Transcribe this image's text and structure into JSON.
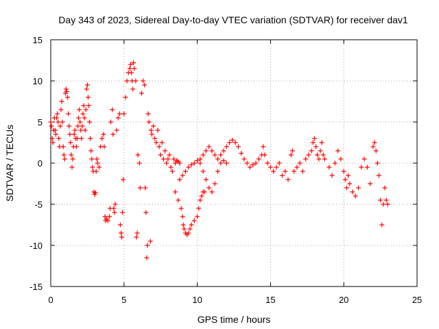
{
  "chart_data": {
    "type": "scatter",
    "title": "Day 343 of 2023, Sidereal Day-to-day VTEC variation (SDTVAR) for receiver dav1",
    "xlabel": "GPS time / hours",
    "ylabel": "SDTVAR / TECUs",
    "xlim": [
      0,
      25
    ],
    "ylim": [
      -15,
      15
    ],
    "x_ticks": [
      0,
      5,
      10,
      15,
      20,
      25
    ],
    "y_ticks": [
      -15,
      -10,
      -5,
      0,
      5,
      10,
      15
    ],
    "x_tick_labels": [
      "0",
      "5",
      "10",
      "15",
      "20",
      "25"
    ],
    "y_tick_labels": [
      "-15",
      "-10",
      "-5",
      "0",
      "5",
      "10",
      "15"
    ],
    "grid": true,
    "marker": "+",
    "series": [
      {
        "name": "dav1",
        "color": "#ff0000",
        "points": [
          [
            0.0,
            5.0
          ],
          [
            0.05,
            4.5
          ],
          [
            0.1,
            3.0
          ],
          [
            0.15,
            2.5
          ],
          [
            0.2,
            4.0
          ],
          [
            0.25,
            5.5
          ],
          [
            0.3,
            4.0
          ],
          [
            0.35,
            3.5
          ],
          [
            0.4,
            5.5
          ],
          [
            0.45,
            6.0
          ],
          [
            0.5,
            5.0
          ],
          [
            0.55,
            3.0
          ],
          [
            0.6,
            2.0
          ],
          [
            0.65,
            4.5
          ],
          [
            0.7,
            6.5
          ],
          [
            0.75,
            7.5
          ],
          [
            0.8,
            5.0
          ],
          [
            0.85,
            2.0
          ],
          [
            0.9,
            1.0
          ],
          [
            0.95,
            0.5
          ],
          [
            1.0,
            8.5
          ],
          [
            1.05,
            9.0
          ],
          [
            1.1,
            8.7
          ],
          [
            1.15,
            8.0
          ],
          [
            1.2,
            6.0
          ],
          [
            1.25,
            4.5
          ],
          [
            1.3,
            3.5
          ],
          [
            1.35,
            2.5
          ],
          [
            1.4,
            1.0
          ],
          [
            1.45,
            -0.5
          ],
          [
            1.5,
            0.5
          ],
          [
            1.55,
            2.0
          ],
          [
            1.6,
            3.5
          ],
          [
            1.65,
            4.0
          ],
          [
            1.7,
            3.0
          ],
          [
            1.75,
            2.0
          ],
          [
            1.8,
            3.0
          ],
          [
            1.85,
            4.5
          ],
          [
            1.9,
            5.5
          ],
          [
            1.95,
            6.5
          ],
          [
            2.0,
            5.0
          ],
          [
            2.05,
            4.0
          ],
          [
            2.1,
            3.0
          ],
          [
            2.15,
            4.5
          ],
          [
            2.2,
            6.0
          ],
          [
            2.25,
            7.0
          ],
          [
            2.3,
            5.5
          ],
          [
            2.35,
            4.0
          ],
          [
            2.4,
            6.5
          ],
          [
            2.45,
            9.0
          ],
          [
            2.5,
            9.5
          ],
          [
            2.55,
            8.0
          ],
          [
            2.6,
            7.0
          ],
          [
            2.65,
            5.0
          ],
          [
            2.7,
            3.0
          ],
          [
            2.75,
            1.5
          ],
          [
            2.8,
            0.5
          ],
          [
            2.85,
            -0.5
          ],
          [
            2.9,
            -1.0
          ],
          [
            2.95,
            -3.5
          ],
          [
            3.0,
            -3.8
          ],
          [
            3.05,
            -3.6
          ],
          [
            3.1,
            -1.0
          ],
          [
            3.15,
            0.5
          ],
          [
            3.2,
            0.0
          ],
          [
            3.3,
            -0.5
          ],
          [
            3.4,
            2.0
          ],
          [
            3.5,
            3.0
          ],
          [
            3.6,
            3.5
          ],
          [
            3.65,
            2.0
          ],
          [
            3.7,
            -6.5
          ],
          [
            3.75,
            -7.0
          ],
          [
            3.8,
            -6.8
          ],
          [
            3.9,
            -7.0
          ],
          [
            4.0,
            -6.5
          ],
          [
            4.05,
            -5.5
          ],
          [
            4.1,
            5.0
          ],
          [
            4.2,
            6.5
          ],
          [
            4.25,
            3.5
          ],
          [
            4.3,
            -5.5
          ],
          [
            4.35,
            -6.0
          ],
          [
            4.4,
            -5.0
          ],
          [
            4.5,
            4.0
          ],
          [
            4.6,
            5.5
          ],
          [
            4.7,
            6.0
          ],
          [
            4.75,
            -7.5
          ],
          [
            4.8,
            -8.5
          ],
          [
            4.85,
            -9.0
          ],
          [
            4.9,
            -6.0
          ],
          [
            4.95,
            -2.0
          ],
          [
            5.0,
            6.0
          ],
          [
            5.1,
            8.0
          ],
          [
            5.2,
            10.0
          ],
          [
            5.3,
            11.0
          ],
          [
            5.4,
            11.5
          ],
          [
            5.45,
            12.0
          ],
          [
            5.5,
            11.0
          ],
          [
            5.55,
            10.0
          ],
          [
            5.6,
            9.0
          ],
          [
            5.65,
            12.2
          ],
          [
            5.7,
            11.5
          ],
          [
            5.8,
            10.0
          ],
          [
            5.85,
            -9.0
          ],
          [
            5.9,
            -8.5
          ],
          [
            5.95,
            1.0
          ],
          [
            6.05,
            0.0
          ],
          [
            6.1,
            -3.0
          ],
          [
            6.2,
            8.5
          ],
          [
            6.3,
            10.0
          ],
          [
            6.4,
            9.5
          ],
          [
            6.45,
            -3.0
          ],
          [
            6.5,
            -6.0
          ],
          [
            6.55,
            -11.5
          ],
          [
            6.6,
            -10.0
          ],
          [
            6.65,
            6.0
          ],
          [
            6.7,
            5.0
          ],
          [
            6.8,
            -9.5
          ],
          [
            6.85,
            4.0
          ],
          [
            6.9,
            3.5
          ],
          [
            7.0,
            4.5
          ],
          [
            7.1,
            3.0
          ],
          [
            7.2,
            2.5
          ],
          [
            7.3,
            4.0
          ],
          [
            7.4,
            2.0
          ],
          [
            7.5,
            1.0
          ],
          [
            7.6,
            2.5
          ],
          [
            7.7,
            0.5
          ],
          [
            7.8,
            1.5
          ],
          [
            7.9,
            0.0
          ],
          [
            8.0,
            0.5
          ],
          [
            8.1,
            1.0
          ],
          [
            8.2,
            -0.5
          ],
          [
            8.3,
            -1.0
          ],
          [
            8.4,
            0.5
          ],
          [
            8.5,
            0.0
          ],
          [
            8.6,
            0.3
          ],
          [
            8.7,
            0.2
          ],
          [
            8.8,
            0.0
          ],
          [
            8.5,
            -3.5
          ],
          [
            8.7,
            -4.5
          ],
          [
            8.9,
            -5.5
          ],
          [
            9.0,
            -6.5
          ],
          [
            9.05,
            -7.5
          ],
          [
            9.1,
            -8.0
          ],
          [
            9.2,
            -8.5
          ],
          [
            9.3,
            -8.7
          ],
          [
            9.4,
            -8.5
          ],
          [
            9.5,
            -8.0
          ],
          [
            9.6,
            -7.5
          ],
          [
            9.8,
            -7.0
          ],
          [
            10.0,
            -6.5
          ],
          [
            10.1,
            -5.5
          ],
          [
            10.2,
            -4.5
          ],
          [
            10.3,
            -4.0
          ],
          [
            10.4,
            -3.5
          ],
          [
            10.5,
            -3.5
          ],
          [
            8.8,
            -2.0
          ],
          [
            9.0,
            -1.5
          ],
          [
            9.2,
            -1.0
          ],
          [
            9.4,
            -0.5
          ],
          [
            9.6,
            -0.2
          ],
          [
            9.8,
            0.0
          ],
          [
            10.0,
            0.3
          ],
          [
            10.2,
            0.0
          ],
          [
            10.4,
            -1.0
          ],
          [
            10.6,
            -2.0
          ],
          [
            10.8,
            -3.0
          ],
          [
            11.0,
            -3.5
          ],
          [
            11.2,
            -2.5
          ],
          [
            11.4,
            -1.0
          ],
          [
            11.6,
            0.0
          ],
          [
            11.8,
            0.3
          ],
          [
            12.0,
            0.0
          ],
          [
            10.2,
            0.5
          ],
          [
            10.4,
            1.0
          ],
          [
            10.6,
            1.5
          ],
          [
            10.8,
            2.0
          ],
          [
            11.0,
            1.5
          ],
          [
            11.2,
            1.0
          ],
          [
            11.4,
            0.5
          ],
          [
            11.6,
            1.0
          ],
          [
            11.8,
            1.5
          ],
          [
            12.0,
            2.0
          ],
          [
            12.2,
            2.5
          ],
          [
            12.4,
            2.8
          ],
          [
            12.6,
            2.5
          ],
          [
            12.8,
            2.0
          ],
          [
            13.0,
            1.2
          ],
          [
            13.2,
            0.5
          ],
          [
            13.4,
            0.0
          ],
          [
            13.6,
            -0.5
          ],
          [
            13.8,
            -0.2
          ],
          [
            14.0,
            0.0
          ],
          [
            14.2,
            0.5
          ],
          [
            14.4,
            1.0
          ],
          [
            14.5,
            2.0
          ],
          [
            14.6,
            1.0
          ],
          [
            14.8,
            0.0
          ],
          [
            15.0,
            -0.5
          ],
          [
            15.2,
            -1.0
          ],
          [
            15.4,
            -0.5
          ],
          [
            15.6,
            0.0
          ],
          [
            15.8,
            -1.5
          ],
          [
            16.0,
            -1.0
          ],
          [
            16.2,
            -2.0
          ],
          [
            16.4,
            1.0
          ],
          [
            16.5,
            1.5
          ],
          [
            16.6,
            -1.0
          ],
          [
            16.8,
            -0.5
          ],
          [
            17.0,
            0.0
          ],
          [
            17.2,
            -1.0
          ],
          [
            17.4,
            0.5
          ],
          [
            17.6,
            1.0
          ],
          [
            17.8,
            1.5
          ],
          [
            17.9,
            2.5
          ],
          [
            18.0,
            3.0
          ],
          [
            18.1,
            2.0
          ],
          [
            18.2,
            1.0
          ],
          [
            18.3,
            0.5
          ],
          [
            18.4,
            1.5
          ],
          [
            18.5,
            2.5
          ],
          [
            18.6,
            1.0
          ],
          [
            18.7,
            0.5
          ],
          [
            19.0,
            -0.5
          ],
          [
            19.2,
            -1.5
          ],
          [
            19.4,
            0.0
          ],
          [
            19.6,
            1.5
          ],
          [
            19.8,
            0.5
          ],
          [
            20.0,
            -1.0
          ],
          [
            20.1,
            -2.0
          ],
          [
            20.2,
            -3.0
          ],
          [
            20.3,
            -1.5
          ],
          [
            20.4,
            -2.5
          ],
          [
            20.6,
            -3.5
          ],
          [
            20.8,
            -4.0
          ],
          [
            21.0,
            -3.0
          ],
          [
            21.2,
            -0.5
          ],
          [
            21.4,
            0.5
          ],
          [
            21.6,
            -0.5
          ],
          [
            21.8,
            -2.5
          ],
          [
            22.0,
            2.0
          ],
          [
            22.1,
            2.5
          ],
          [
            22.2,
            1.5
          ],
          [
            22.3,
            0.0
          ],
          [
            22.4,
            -1.5
          ],
          [
            22.5,
            -4.5
          ],
          [
            22.6,
            -7.5
          ],
          [
            22.7,
            -5.0
          ],
          [
            22.8,
            -3.0
          ],
          [
            22.9,
            -4.5
          ],
          [
            23.0,
            -5.0
          ]
        ]
      }
    ]
  }
}
